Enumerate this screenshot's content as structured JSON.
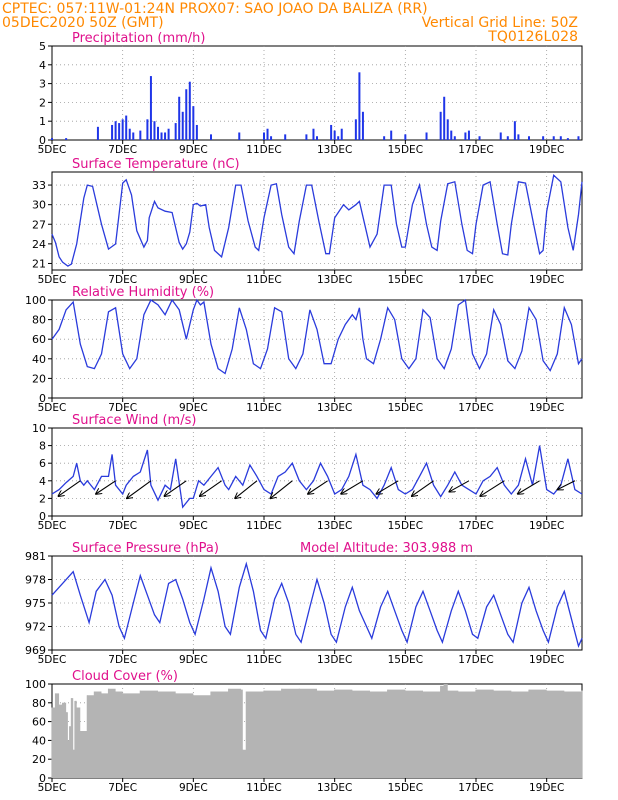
{
  "header": {
    "line1": "CPTEC:  057:11W-01:24N  PROX07: SAO JOAO DA BALIZA (RR)",
    "line2": "05DEC2020 50Z (GMT)",
    "grid_note": "Vertical Grid Line: 50Z",
    "model": "TQ0126L028"
  },
  "colors": {
    "header": "#ff8800",
    "title": "#e0108c",
    "line": "#2a3bdc",
    "bar": "#1f35e8",
    "cloud": "#b4b4b4",
    "arrow": "#000000",
    "grid": "#9a9a9a"
  },
  "x_axis": {
    "labels": [
      "5DEC",
      "7DEC",
      "9DEC",
      "11DEC",
      "13DEC",
      "15DEC",
      "17DEC",
      "19DEC"
    ],
    "day_values": [
      5,
      7,
      9,
      11,
      13,
      15,
      17,
      19
    ],
    "range": [
      5,
      20
    ]
  },
  "chart_data": [
    {
      "type": "bar",
      "title": "Precipitation (mm/h)",
      "ylim": [
        0,
        5
      ],
      "yticks": [
        "0",
        "1",
        "2",
        "3",
        "4",
        "5"
      ],
      "series": [
        {
          "x": [
            5.0,
            5.4,
            6.3,
            6.7,
            6.8,
            6.9,
            7.0,
            7.1,
            7.2,
            7.3,
            7.5,
            7.7,
            7.8,
            7.9,
            8.0,
            8.1,
            8.2,
            8.3,
            8.5,
            8.6,
            8.7,
            8.8,
            8.9,
            9.0,
            9.1,
            9.5,
            10.3,
            11.0,
            11.1,
            11.2,
            11.6,
            12.2,
            12.4,
            12.5,
            12.9,
            13.0,
            13.1,
            13.2,
            13.6,
            13.7,
            13.8,
            14.4,
            14.6,
            15.0,
            15.6,
            16.0,
            16.1,
            16.2,
            16.3,
            16.4,
            16.7,
            16.8,
            17.1,
            17.7,
            17.9,
            18.1,
            18.2,
            18.5,
            18.9,
            19.2,
            19.4,
            19.6,
            19.9
          ],
          "values": [
            0.1,
            0.1,
            0.7,
            0.8,
            1.0,
            0.9,
            1.1,
            1.3,
            0.6,
            0.4,
            0.5,
            1.1,
            3.4,
            1.0,
            0.7,
            0.4,
            0.4,
            0.6,
            0.9,
            2.3,
            1.5,
            2.7,
            3.1,
            1.8,
            0.8,
            0.3,
            0.4,
            0.4,
            0.6,
            0.2,
            0.3,
            0.3,
            0.6,
            0.2,
            0.8,
            0.5,
            0.2,
            0.6,
            1.1,
            3.6,
            1.5,
            0.2,
            0.5,
            0.3,
            0.4,
            1.5,
            2.3,
            1.1,
            0.5,
            0.2,
            0.4,
            0.5,
            0.2,
            0.4,
            0.2,
            1.0,
            0.3,
            0.2,
            0.2,
            0.2,
            0.2,
            0.1,
            0.2
          ]
        }
      ]
    },
    {
      "type": "line",
      "title": "Surface Temperature (nC)",
      "ylim": [
        20,
        35
      ],
      "yticks": [
        "21",
        "24",
        "27",
        "30",
        "33"
      ],
      "series": [
        {
          "x": [
            5.0,
            5.1,
            5.2,
            5.3,
            5.45,
            5.55,
            5.7,
            5.9,
            6.0,
            6.15,
            6.4,
            6.6,
            6.8,
            7.0,
            7.1,
            7.25,
            7.4,
            7.6,
            7.7,
            7.75,
            7.9,
            8.0,
            8.2,
            8.4,
            8.6,
            8.7,
            8.8,
            8.9,
            9.0,
            9.1,
            9.2,
            9.35,
            9.45,
            9.6,
            9.8,
            10.0,
            10.2,
            10.35,
            10.55,
            10.75,
            10.85,
            11.0,
            11.2,
            11.35,
            11.5,
            11.7,
            11.85,
            12.0,
            12.2,
            12.35,
            12.55,
            12.75,
            12.85,
            13.0,
            13.25,
            13.4,
            13.6,
            13.7,
            13.85,
            14.0,
            14.2,
            14.4,
            14.6,
            14.75,
            14.9,
            15.0,
            15.2,
            15.4,
            15.6,
            15.75,
            15.9,
            16.0,
            16.2,
            16.4,
            16.6,
            16.75,
            16.9,
            17.0,
            17.2,
            17.4,
            17.6,
            17.75,
            17.9,
            18.0,
            18.2,
            18.4,
            18.65,
            18.8,
            18.9,
            19.0,
            19.2,
            19.4,
            19.6,
            19.75,
            19.9,
            20.0
          ],
          "values": [
            25.5,
            24.2,
            22.0,
            21.2,
            20.6,
            20.9,
            24.0,
            31.0,
            33.0,
            32.8,
            27.0,
            23.2,
            24.0,
            33.3,
            33.8,
            31.5,
            26.0,
            23.5,
            24.5,
            28.0,
            30.5,
            29.5,
            29.0,
            28.8,
            24.2,
            23.2,
            24.0,
            25.8,
            30.0,
            30.2,
            29.8,
            30.0,
            26.5,
            23.0,
            22.0,
            26.5,
            33.0,
            33.0,
            27.5,
            23.5,
            23.0,
            28.0,
            33.0,
            33.2,
            28.5,
            23.5,
            22.5,
            27.5,
            33.0,
            33.0,
            27.5,
            22.5,
            22.5,
            28.0,
            30.0,
            29.2,
            30.0,
            30.5,
            27.0,
            23.5,
            25.5,
            33.0,
            33.0,
            27.0,
            23.5,
            23.5,
            30.0,
            33.0,
            27.0,
            23.5,
            23.0,
            27.5,
            33.2,
            33.5,
            27.0,
            23.0,
            22.5,
            27.0,
            33.0,
            33.5,
            27.0,
            22.5,
            22.3,
            27.0,
            33.5,
            33.3,
            26.5,
            22.5,
            23.0,
            29.0,
            34.5,
            33.5,
            26.5,
            23.0,
            28.5,
            33.5
          ]
        }
      ]
    },
    {
      "type": "line",
      "title": "Relative Humidity (%)",
      "ylim": [
        0,
        100
      ],
      "yticks": [
        "0",
        "20",
        "40",
        "60",
        "80",
        "100"
      ],
      "series": [
        {
          "x": [
            5.0,
            5.2,
            5.4,
            5.6,
            5.8,
            6.0,
            6.2,
            6.4,
            6.6,
            6.8,
            7.0,
            7.2,
            7.4,
            7.6,
            7.8,
            8.0,
            8.2,
            8.4,
            8.6,
            8.8,
            9.0,
            9.1,
            9.2,
            9.3,
            9.5,
            9.7,
            9.9,
            10.1,
            10.3,
            10.5,
            10.7,
            10.9,
            11.1,
            11.3,
            11.5,
            11.7,
            11.9,
            12.1,
            12.3,
            12.5,
            12.7,
            12.9,
            13.1,
            13.3,
            13.5,
            13.6,
            13.7,
            13.8,
            13.9,
            14.1,
            14.3,
            14.5,
            14.7,
            14.9,
            15.1,
            15.3,
            15.5,
            15.7,
            15.9,
            16.1,
            16.3,
            16.5,
            16.7,
            16.9,
            17.1,
            17.3,
            17.5,
            17.7,
            17.9,
            18.1,
            18.3,
            18.5,
            18.7,
            18.9,
            19.1,
            19.3,
            19.5,
            19.7,
            19.9,
            20.0
          ],
          "values": [
            60,
            70,
            90,
            98,
            55,
            32,
            30,
            45,
            88,
            92,
            45,
            30,
            40,
            85,
            100,
            95,
            85,
            100,
            90,
            60,
            90,
            100,
            95,
            98,
            55,
            30,
            25,
            50,
            92,
            70,
            35,
            30,
            50,
            92,
            88,
            40,
            30,
            45,
            90,
            70,
            35,
            35,
            60,
            75,
            85,
            80,
            92,
            60,
            40,
            35,
            60,
            92,
            80,
            40,
            30,
            40,
            90,
            82,
            40,
            30,
            50,
            95,
            100,
            45,
            30,
            45,
            90,
            75,
            38,
            30,
            48,
            92,
            80,
            38,
            28,
            45,
            92,
            75,
            35,
            40
          ]
        }
      ]
    },
    {
      "type": "line",
      "title": "Surface Wind (m/s)",
      "ylim": [
        0,
        10
      ],
      "yticks": [
        "0",
        "2",
        "4",
        "6",
        "8",
        "10"
      ],
      "series": [
        {
          "x": [
            5.0,
            5.2,
            5.4,
            5.6,
            5.7,
            5.8,
            5.9,
            6.0,
            6.2,
            6.4,
            6.6,
            6.7,
            6.8,
            7.0,
            7.1,
            7.3,
            7.5,
            7.7,
            7.8,
            8.0,
            8.2,
            8.35,
            8.5,
            8.7,
            8.9,
            9.0,
            9.15,
            9.3,
            9.5,
            9.7,
            9.9,
            10.0,
            10.2,
            10.4,
            10.6,
            10.8,
            11.0,
            11.2,
            11.4,
            11.6,
            11.8,
            12.0,
            12.2,
            12.4,
            12.6,
            12.8,
            13.0,
            13.2,
            13.4,
            13.6,
            13.8,
            14.0,
            14.2,
            14.4,
            14.6,
            14.8,
            15.0,
            15.2,
            15.4,
            15.6,
            15.8,
            16.0,
            16.2,
            16.4,
            16.6,
            16.8,
            17.0,
            17.2,
            17.4,
            17.6,
            17.8,
            18.0,
            18.2,
            18.4,
            18.6,
            18.8,
            19.0,
            19.2,
            19.4,
            19.6,
            19.8,
            20.0
          ],
          "values": [
            2.5,
            3.0,
            3.8,
            4.5,
            6.0,
            4.0,
            3.5,
            4.0,
            3.0,
            4.5,
            4.5,
            7.0,
            3.5,
            2.5,
            3.5,
            4.5,
            5.0,
            7.5,
            3.5,
            1.8,
            3.5,
            3.0,
            6.5,
            1.0,
            2.0,
            2.0,
            4.0,
            3.5,
            4.5,
            5.5,
            3.5,
            3.0,
            4.5,
            3.5,
            5.8,
            4.5,
            3.0,
            2.5,
            4.5,
            5.0,
            6.0,
            4.0,
            3.0,
            4.0,
            6.0,
            4.5,
            2.5,
            3.0,
            4.5,
            7.0,
            3.5,
            3.0,
            2.0,
            3.5,
            5.5,
            3.0,
            2.5,
            3.0,
            4.5,
            6.0,
            3.5,
            2.2,
            3.5,
            5.0,
            3.5,
            3.0,
            2.5,
            4.0,
            4.5,
            5.5,
            3.5,
            2.5,
            3.5,
            6.5,
            3.5,
            8.0,
            3.0,
            2.5,
            3.5,
            6.5,
            3.0,
            2.5
          ]
        }
      ],
      "wind_vectors": {
        "x": [
          5.8,
          6.8,
          7.8,
          8.8,
          9.8,
          10.8,
          11.8,
          12.8,
          13.8,
          14.8,
          15.8,
          16.8,
          17.8,
          18.8,
          19.8
        ],
        "dx": [
          -1.0,
          -0.9,
          -1.1,
          -1.0,
          -1.0,
          -1.0,
          -1.0,
          -0.9,
          -1.0,
          -1.0,
          -1.0,
          -0.9,
          -1.1,
          -1.0,
          -0.8
        ],
        "dy": [
          -0.7,
          -0.6,
          -0.8,
          -0.7,
          -0.7,
          -0.8,
          -0.8,
          -0.6,
          -0.6,
          -0.6,
          -0.7,
          -0.5,
          -0.7,
          -0.6,
          -0.4
        ]
      }
    },
    {
      "type": "line",
      "title": "Surface Pressure (hPa)",
      "annotation": "Model Altitude: 303.988 m",
      "ylim": [
        969,
        981
      ],
      "yticks": [
        "969",
        "972",
        "975",
        "978",
        "981"
      ],
      "series": [
        {
          "x": [
            5.0,
            5.3,
            5.6,
            5.8,
            6.05,
            6.25,
            6.5,
            6.7,
            6.9,
            7.05,
            7.3,
            7.5,
            7.7,
            7.9,
            8.05,
            8.3,
            8.5,
            8.7,
            8.9,
            9.05,
            9.3,
            9.5,
            9.7,
            9.9,
            10.05,
            10.3,
            10.5,
            10.7,
            10.9,
            11.05,
            11.3,
            11.5,
            11.7,
            11.9,
            12.05,
            12.3,
            12.5,
            12.7,
            12.9,
            13.05,
            13.3,
            13.5,
            13.7,
            13.9,
            14.05,
            14.3,
            14.5,
            14.7,
            14.9,
            15.05,
            15.3,
            15.5,
            15.7,
            15.9,
            16.05,
            16.3,
            16.5,
            16.7,
            16.9,
            17.05,
            17.3,
            17.5,
            17.7,
            17.9,
            18.05,
            18.3,
            18.5,
            18.7,
            18.9,
            19.05,
            19.3,
            19.5,
            19.7,
            19.9,
            20.0
          ],
          "values": [
            976.0,
            977.5,
            979.0,
            976.0,
            972.5,
            976.5,
            978.0,
            976.0,
            972.0,
            970.5,
            975.0,
            978.5,
            976.0,
            973.5,
            972.5,
            977.5,
            978.0,
            975.5,
            972.5,
            971.0,
            975.5,
            979.5,
            976.5,
            972.0,
            971.0,
            977.0,
            980.0,
            976.5,
            971.5,
            970.5,
            975.5,
            977.5,
            975.0,
            971.0,
            970.0,
            974.5,
            978.0,
            975.0,
            971.0,
            970.0,
            974.5,
            977.0,
            974.0,
            972.0,
            970.5,
            974.5,
            976.5,
            974.0,
            971.5,
            970.0,
            974.5,
            976.5,
            974.0,
            971.5,
            970.0,
            974.0,
            976.5,
            974.0,
            971.0,
            970.5,
            974.5,
            976.0,
            973.5,
            971.0,
            970.0,
            975.0,
            977.0,
            974.0,
            971.5,
            970.0,
            974.5,
            976.5,
            973.0,
            969.5,
            970.5
          ]
        }
      ]
    },
    {
      "type": "bar",
      "title": "Cloud Cover (%)",
      "ylim": [
        0,
        100
      ],
      "yticks": [
        "0",
        "20",
        "40",
        "60",
        "80",
        "100"
      ],
      "series": [
        {
          "x": [
            5.0,
            5.1,
            5.2,
            5.3,
            5.4,
            5.45,
            5.5,
            5.55,
            5.6,
            5.65,
            5.7,
            5.8,
            6.0,
            6.2,
            6.4,
            6.6,
            6.8,
            7.0,
            7.5,
            8.0,
            8.5,
            9.0,
            9.5,
            10.0,
            10.35,
            10.4,
            10.5,
            11.0,
            11.5,
            12.0,
            12.5,
            13.0,
            13.5,
            14.0,
            14.5,
            15.0,
            15.5,
            16.0,
            16.1,
            16.2,
            16.5,
            17.0,
            17.5,
            18.0,
            18.5,
            19.0,
            19.5,
            20.0
          ],
          "values": [
            75,
            90,
            78,
            80,
            70,
            40,
            55,
            85,
            30,
            82,
            75,
            50,
            88,
            92,
            90,
            95,
            92,
            90,
            93,
            92,
            90,
            88,
            92,
            95,
            94,
            30,
            92,
            93,
            95,
            95,
            93,
            94,
            93,
            92,
            94,
            93,
            92,
            98,
            100,
            93,
            92,
            94,
            93,
            92,
            94,
            93,
            92,
            93
          ]
        }
      ]
    }
  ]
}
